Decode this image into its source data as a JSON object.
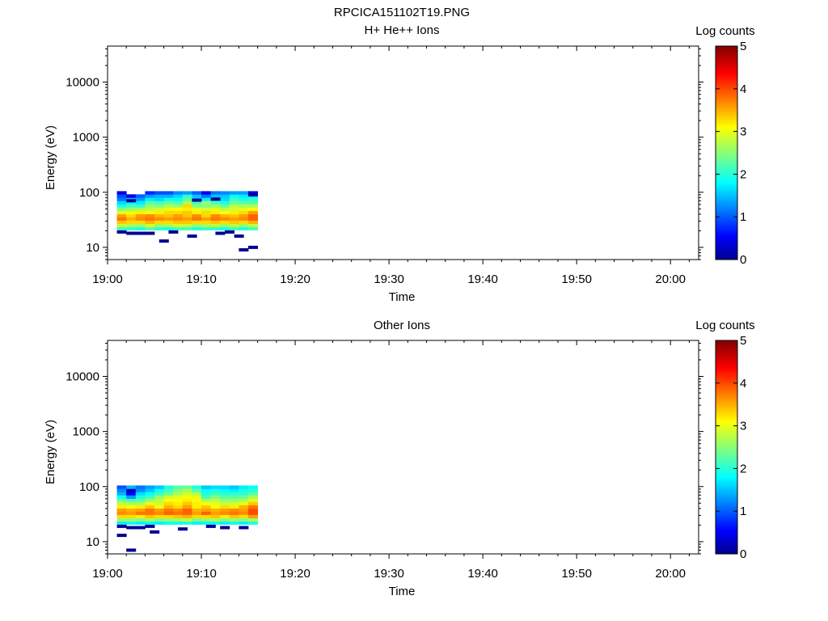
{
  "page_title": "RPCICA151102T19.PNG",
  "chart_data": [
    {
      "type": "heatmap",
      "title": "H+ He++ Ions",
      "xlabel": "Time",
      "ylabel": "Energy (eV)",
      "xticks": [
        "19:00",
        "19:10",
        "19:20",
        "19:30",
        "19:40",
        "19:50",
        "20:00"
      ],
      "x_range_minutes": [
        0,
        63
      ],
      "yticks": [
        10,
        100,
        1000,
        10000
      ],
      "ylim": [
        6,
        45000
      ],
      "yscale": "log",
      "colorbar_label": "Log counts",
      "colorbar_ticks": [
        0,
        1,
        2,
        3,
        4,
        5
      ],
      "colorbar_range": [
        0,
        5
      ],
      "colormap": "jet",
      "data_extent_minutes": [
        1,
        15.6
      ],
      "time_bins": [
        1.0,
        2.0,
        3.0,
        4.0,
        5.0,
        6.0,
        7.0,
        8.0,
        9.0,
        10.0,
        11.0,
        12.0,
        13.0,
        14.0,
        15.0
      ],
      "energy_bins": [
        22,
        25,
        29,
        33,
        38,
        43,
        50,
        57,
        65,
        75,
        86,
        98
      ],
      "values": [
        [
          2.2,
          2.1,
          2.0,
          2.3,
          2.1,
          2.0,
          2.2,
          2.2,
          2.0,
          2.1,
          2.1,
          2.0,
          2.2,
          2.0,
          2.2
        ],
        [
          2.8,
          2.7,
          2.6,
          2.9,
          2.6,
          2.7,
          2.9,
          2.8,
          2.6,
          2.7,
          2.8,
          2.6,
          2.8,
          2.6,
          2.8
        ],
        [
          3.4,
          3.3,
          3.3,
          3.5,
          3.3,
          3.3,
          3.4,
          3.4,
          3.3,
          3.3,
          3.4,
          3.3,
          3.4,
          3.3,
          3.5
        ],
        [
          3.8,
          3.5,
          3.7,
          3.8,
          3.7,
          3.6,
          3.7,
          3.6,
          3.8,
          3.6,
          3.8,
          3.7,
          3.6,
          3.7,
          3.9
        ],
        [
          3.6,
          3.3,
          3.6,
          3.7,
          3.5,
          3.4,
          3.6,
          3.4,
          3.7,
          3.3,
          3.7,
          3.5,
          3.4,
          3.6,
          3.9
        ],
        [
          3.0,
          3.1,
          3.2,
          3.1,
          3.2,
          3.3,
          3.3,
          3.4,
          3.2,
          3.3,
          3.2,
          3.1,
          3.2,
          3.3,
          3.6
        ],
        [
          2.5,
          2.6,
          2.7,
          2.8,
          2.9,
          3.0,
          3.1,
          3.2,
          3.0,
          2.9,
          3.0,
          2.8,
          2.9,
          3.0,
          3.1
        ],
        [
          2.0,
          2.2,
          2.1,
          2.6,
          2.5,
          2.7,
          2.6,
          3.3,
          2.5,
          2.5,
          2.6,
          2.4,
          2.8,
          2.7,
          2.7
        ],
        [
          1.7,
          1.9,
          1.8,
          2.3,
          2.2,
          2.4,
          2.3,
          2.7,
          2.2,
          2.6,
          2.2,
          2.0,
          2.4,
          2.3,
          2.3
        ],
        [
          1.2,
          1.5,
          1.4,
          1.8,
          1.7,
          1.9,
          1.9,
          2.4,
          1.8,
          1.8,
          1.9,
          1.7,
          2.2,
          2.0,
          2.1
        ],
        [
          1.0,
          0.6,
          1.1,
          1.4,
          1.5,
          1.5,
          1.7,
          2.1,
          1.6,
          1.2,
          1.6,
          1.6,
          1.9,
          1.8,
          1.8
        ],
        [
          0.5,
          null,
          null,
          0.8,
          1.0,
          1.0,
          1.3,
          1.4,
          1.1,
          0.5,
          1.2,
          1.3,
          1.4,
          1.4,
          0.6
        ]
      ],
      "isolated_points_minutes_eV_logcounts": [
        [
          1.0,
          19,
          0.1
        ],
        [
          2.0,
          18,
          0.1
        ],
        [
          3.0,
          18,
          0.1
        ],
        [
          4.0,
          18,
          0.1
        ],
        [
          5.5,
          13,
          0.1
        ],
        [
          6.5,
          19,
          0.1
        ],
        [
          8.5,
          16,
          0.1
        ],
        [
          11.5,
          18,
          0.1
        ],
        [
          12.5,
          19,
          0.1
        ],
        [
          13.5,
          16,
          0.1
        ],
        [
          14.0,
          9,
          0.1
        ],
        [
          15.0,
          10,
          0.1
        ],
        [
          2.0,
          70,
          0.1
        ],
        [
          9.0,
          72,
          0.1
        ],
        [
          11.0,
          75,
          0.1
        ],
        [
          15.0,
          90,
          0.1
        ]
      ]
    },
    {
      "type": "heatmap",
      "title": "Other Ions",
      "xlabel": "Time",
      "ylabel": "Energy (eV)",
      "xticks": [
        "19:00",
        "19:10",
        "19:20",
        "19:30",
        "19:40",
        "19:50",
        "20:00"
      ],
      "x_range_minutes": [
        0,
        63
      ],
      "yticks": [
        10,
        100,
        1000,
        10000
      ],
      "ylim": [
        6,
        45000
      ],
      "yscale": "log",
      "colorbar_label": "Log counts",
      "colorbar_ticks": [
        0,
        1,
        2,
        3,
        4,
        5
      ],
      "colorbar_range": [
        0,
        5
      ],
      "colormap": "jet",
      "data_extent_minutes": [
        1,
        15.6
      ],
      "time_bins": [
        1.0,
        2.0,
        3.0,
        4.0,
        5.0,
        6.0,
        7.0,
        8.0,
        9.0,
        10.0,
        11.0,
        12.0,
        13.0,
        14.0,
        15.0
      ],
      "energy_bins": [
        22,
        25,
        29,
        33,
        38,
        43,
        50,
        57,
        65,
        75,
        86,
        98
      ],
      "values": [
        [
          1.8,
          1.9,
          1.8,
          1.9,
          1.8,
          1.9,
          1.9,
          2.0,
          1.8,
          1.9,
          1.9,
          1.8,
          1.9,
          1.8,
          2.0
        ],
        [
          2.6,
          2.6,
          2.5,
          2.7,
          2.5,
          2.6,
          2.7,
          2.8,
          2.5,
          2.6,
          2.7,
          2.5,
          2.6,
          2.5,
          2.7
        ],
        [
          3.3,
          3.3,
          3.2,
          3.4,
          3.3,
          3.3,
          3.4,
          3.5,
          3.3,
          3.3,
          3.4,
          3.2,
          3.4,
          3.3,
          3.6
        ],
        [
          3.7,
          3.6,
          3.8,
          3.8,
          3.7,
          3.9,
          3.8,
          3.9,
          3.6,
          3.9,
          3.6,
          3.7,
          3.8,
          3.7,
          4.0
        ],
        [
          3.6,
          3.5,
          3.6,
          3.8,
          3.6,
          3.8,
          3.7,
          3.9,
          3.5,
          3.6,
          3.5,
          3.6,
          3.7,
          3.6,
          4.0
        ],
        [
          3.2,
          3.1,
          3.2,
          3.4,
          3.1,
          3.5,
          3.3,
          3.6,
          3.2,
          3.4,
          3.1,
          3.3,
          3.2,
          3.5,
          3.8
        ],
        [
          2.8,
          2.7,
          2.7,
          3.0,
          2.9,
          3.3,
          3.2,
          3.4,
          3.2,
          3.1,
          3.0,
          2.8,
          2.9,
          3.0,
          3.4
        ],
        [
          2.4,
          2.2,
          2.3,
          2.6,
          2.8,
          3.1,
          3.1,
          3.2,
          3.1,
          2.7,
          2.8,
          2.6,
          2.6,
          2.7,
          3.0
        ],
        [
          1.9,
          1.4,
          2.0,
          2.2,
          2.6,
          2.9,
          3.0,
          3.1,
          3.0,
          2.2,
          2.5,
          2.3,
          2.3,
          2.4,
          2.7
        ],
        [
          1.5,
          0.6,
          1.7,
          1.9,
          2.2,
          2.4,
          2.7,
          2.9,
          2.7,
          2.0,
          2.2,
          2.1,
          2.1,
          2.1,
          2.3
        ],
        [
          1.3,
          0.3,
          1.3,
          1.6,
          1.9,
          2.2,
          2.5,
          2.7,
          2.3,
          1.9,
          2.0,
          1.9,
          1.8,
          2.0,
          2.1
        ],
        [
          1.0,
          1.5,
          1.2,
          1.4,
          1.6,
          2.0,
          2.3,
          2.4,
          2.0,
          1.6,
          1.7,
          1.7,
          1.6,
          1.8,
          1.9
        ]
      ],
      "isolated_points_minutes_eV_logcounts": [
        [
          1.0,
          19,
          0.1
        ],
        [
          2.0,
          18,
          0.1
        ],
        [
          3.0,
          18,
          0.1
        ],
        [
          4.0,
          19,
          0.1
        ],
        [
          7.5,
          17,
          0.1
        ],
        [
          10.5,
          19,
          0.1
        ],
        [
          12.0,
          18,
          0.1
        ],
        [
          14.0,
          18,
          0.1
        ],
        [
          1.0,
          13,
          0.1
        ],
        [
          4.5,
          15,
          0.1
        ],
        [
          2.0,
          7,
          0.1
        ]
      ]
    }
  ]
}
